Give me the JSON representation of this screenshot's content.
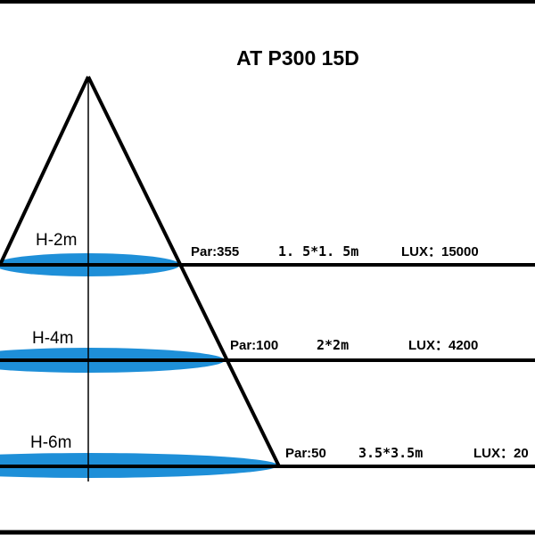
{
  "title": "AT P300 15D",
  "colors": {
    "beam": "#1e8fd8",
    "line": "#000000",
    "background": "#ffffff"
  },
  "rows": [
    {
      "height": "H-2m",
      "par": "Par:355",
      "area": "1. 5*1. 5m",
      "lux": "LUX：15000"
    },
    {
      "height": "H-4m",
      "par": "Par:100",
      "area": "2*2m",
      "lux": "LUX：4200"
    },
    {
      "height": "H-6m",
      "par": "Par:50",
      "area": "3.5*3.5m",
      "lux": "LUX：20"
    }
  ]
}
